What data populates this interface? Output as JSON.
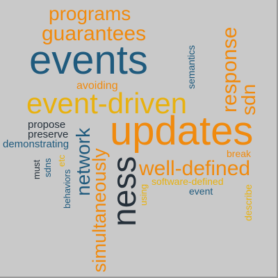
{
  "words": {
    "programs": "programs",
    "guarantees": "guarantees",
    "events": "events",
    "response": "response",
    "semantics": "semantics",
    "avoiding": "avoiding",
    "event_driven": "event-driven",
    "sdn": "sdn",
    "updates": "updates",
    "propose": "propose",
    "preserve": "preserve",
    "demonstrating": "demonstrating",
    "network": "network",
    "simultaneously": "simultaneously",
    "must": "must",
    "sdns": "sdns",
    "etc": "etc",
    "behaviors": "behaviors",
    "ness": "ness",
    "well_defined": "well-defined",
    "break": "break",
    "using": "using",
    "software_defined": "software-defined",
    "event": "event",
    "describe": "describe"
  }
}
